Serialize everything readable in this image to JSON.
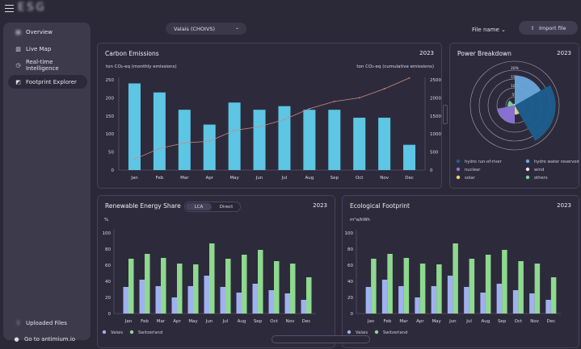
{
  "app": {
    "logo_text": "ESG"
  },
  "sidebar": {
    "items": [
      {
        "label": "Overview",
        "icon": "overview-icon",
        "active": false
      },
      {
        "label": "Live Map",
        "icon": "map-icon",
        "active": false
      },
      {
        "label": "Real-time Intelligence",
        "icon": "clock-icon",
        "active": false
      },
      {
        "label": "Footprint Explorer",
        "icon": "footprint-icon",
        "active": true
      }
    ],
    "bottom_items": [
      {
        "label": "Uploaded Files"
      },
      {
        "label": "Go to antimium.io"
      }
    ]
  },
  "header": {
    "region_select": "Valais (CHOIVS)",
    "file_name_label": "File name",
    "import_label": "Import file"
  },
  "cards": {
    "carbon": {
      "title": "Carbon Emissions",
      "year": "2023",
      "left_unit": "ton CO₂-eq (monthly emissions)",
      "right_unit": "ton CO₂-eq (cumulative emissions)"
    },
    "power": {
      "title": "Power Breakdown",
      "year": "2023"
    },
    "renewable": {
      "title": "Renewable Energy Share",
      "year": "2023",
      "unit": "%",
      "toggle": [
        "LCA",
        "Direct"
      ],
      "toggle_active": "LCA"
    },
    "eco": {
      "title": "Ecological Footprint",
      "year": "2023",
      "unit": "m²a/kWh"
    }
  },
  "chart_data": [
    {
      "type": "bar",
      "title": "Carbon Emissions",
      "categories": [
        "Jan",
        "Feb",
        "Mar",
        "Apr",
        "May",
        "Jun",
        "Jul",
        "Aug",
        "Sep",
        "Oct",
        "Nov",
        "Dec"
      ],
      "series": [
        {
          "name": "monthly emissions",
          "values": [
            240,
            215,
            167,
            126,
            187,
            167,
            177,
            167,
            167,
            145,
            145,
            70
          ],
          "color": "#5cc6e4"
        },
        {
          "name": "cumulative emissions",
          "type": "line",
          "axis": "right",
          "values": [
            300,
            600,
            750,
            800,
            1100,
            1200,
            1400,
            1700,
            1900,
            2000,
            2250,
            2550
          ],
          "color": "#c98b8b"
        }
      ],
      "ylim": [
        0,
        250
      ],
      "yticks": [
        0,
        50,
        100,
        150,
        200,
        250
      ],
      "y2lim": [
        0,
        2500
      ],
      "y2ticks": [
        0,
        500,
        1000,
        1500,
        2000,
        2500
      ]
    },
    {
      "type": "pie",
      "title": "Power Breakdown",
      "subtype": "polar-area",
      "rticks": [
        "5%",
        "10%",
        "15%",
        "20%"
      ],
      "slices": [
        {
          "name": "hydro run-of-river",
          "value": 23,
          "color": "#1c5e8e"
        },
        {
          "name": "hydro water reservoir",
          "value": 17,
          "color": "#69a8dc"
        },
        {
          "name": "nuclear",
          "value": 10,
          "color": "#8c74d8"
        },
        {
          "name": "wind",
          "value": 1,
          "color": "#e7e7ef"
        },
        {
          "name": "solar",
          "value": 5,
          "color": "#e8d97a"
        },
        {
          "name": "others",
          "value": 4,
          "color": "#7fd3a4"
        }
      ]
    },
    {
      "type": "bar",
      "title": "Renewable Energy Share",
      "categories": [
        "Jan",
        "Feb",
        "Mar",
        "Apr",
        "May",
        "Jun",
        "Jul",
        "Aug",
        "Sep",
        "Oct",
        "Nov",
        "Dec"
      ],
      "series": [
        {
          "name": "Valais",
          "values": [
            33,
            42,
            34,
            20,
            34,
            47,
            33,
            26,
            37,
            29,
            25,
            17
          ],
          "color": "#9fb1f0"
        },
        {
          "name": "Switzerland",
          "values": [
            68,
            74,
            69,
            62,
            61,
            87,
            68,
            73,
            79,
            65,
            62,
            45
          ],
          "color": "#8ed98f"
        }
      ],
      "ylim": [
        0,
        100
      ],
      "yticks": [
        0,
        20,
        40,
        60,
        80,
        100
      ]
    },
    {
      "type": "bar",
      "title": "Ecological Footprint",
      "categories": [
        "Jan",
        "Feb",
        "Mar",
        "Apr",
        "May",
        "Jun",
        "Jul",
        "Aug",
        "Sep",
        "Oct",
        "Nov",
        "Dec"
      ],
      "series": [
        {
          "name": "Valais",
          "values": [
            33,
            42,
            34,
            20,
            34,
            47,
            33,
            26,
            37,
            29,
            25,
            17
          ],
          "color": "#9fb1f0"
        },
        {
          "name": "Switzerland",
          "values": [
            68,
            74,
            69,
            62,
            61,
            87,
            68,
            73,
            79,
            65,
            62,
            45
          ],
          "color": "#8ed98f"
        }
      ],
      "ylim": [
        0,
        100
      ],
      "yticks": [
        0,
        20,
        40,
        60,
        80,
        100
      ]
    }
  ]
}
